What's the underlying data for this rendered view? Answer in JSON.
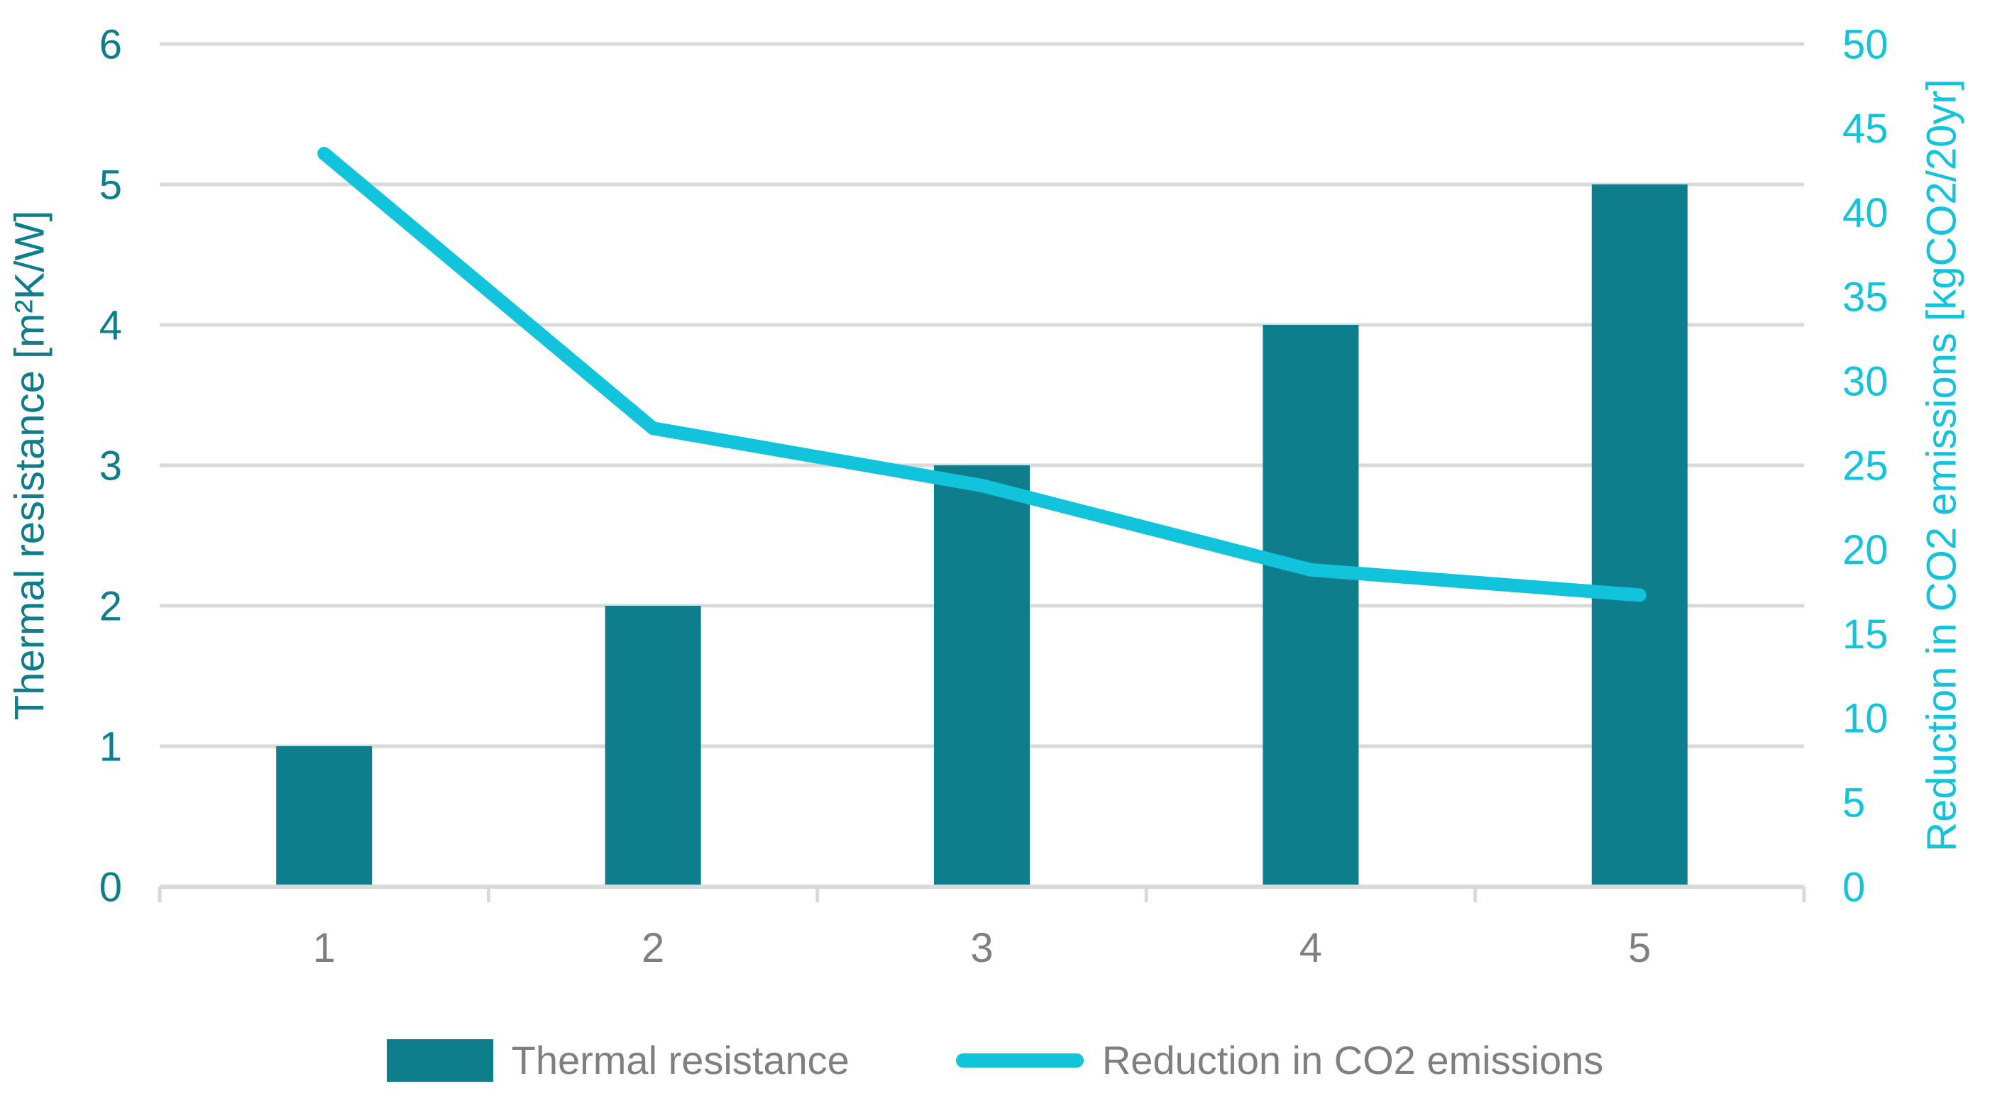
{
  "chart_data": {
    "type": "combo",
    "title": "",
    "categories": [
      "1",
      "2",
      "3",
      "4",
      "5"
    ],
    "series": [
      {
        "name": "Thermal resistance",
        "type": "bar",
        "axis": "left",
        "color": "#0E7D8C",
        "values": [
          1,
          2,
          3,
          4,
          5
        ]
      },
      {
        "name": "Reduction in CO2 emissions",
        "type": "line",
        "axis": "right",
        "color": "#12C3DC",
        "values": [
          43.5,
          27.2,
          23.8,
          18.8,
          17.3
        ]
      }
    ],
    "left_axis": {
      "label": "Thermal resistance [m²K/W]",
      "min": 0,
      "max": 6,
      "step": 1,
      "ticks": [
        0,
        1,
        2,
        3,
        4,
        5,
        6
      ],
      "color": "#0E7D8C"
    },
    "right_axis": {
      "label": "Reduction in CO2 emissions [kgCO2/20yr]",
      "min": 0,
      "max": 50,
      "step": 5,
      "ticks": [
        0,
        5,
        10,
        15,
        20,
        25,
        30,
        35,
        40,
        45,
        50
      ],
      "color": "#12C3DC"
    },
    "x_axis": {
      "color": "#7F7F7F"
    },
    "grid": {
      "show": true,
      "color": "#D9D9D9"
    },
    "legend": {
      "position": "bottom",
      "text_color": "#7F7F7F"
    }
  }
}
